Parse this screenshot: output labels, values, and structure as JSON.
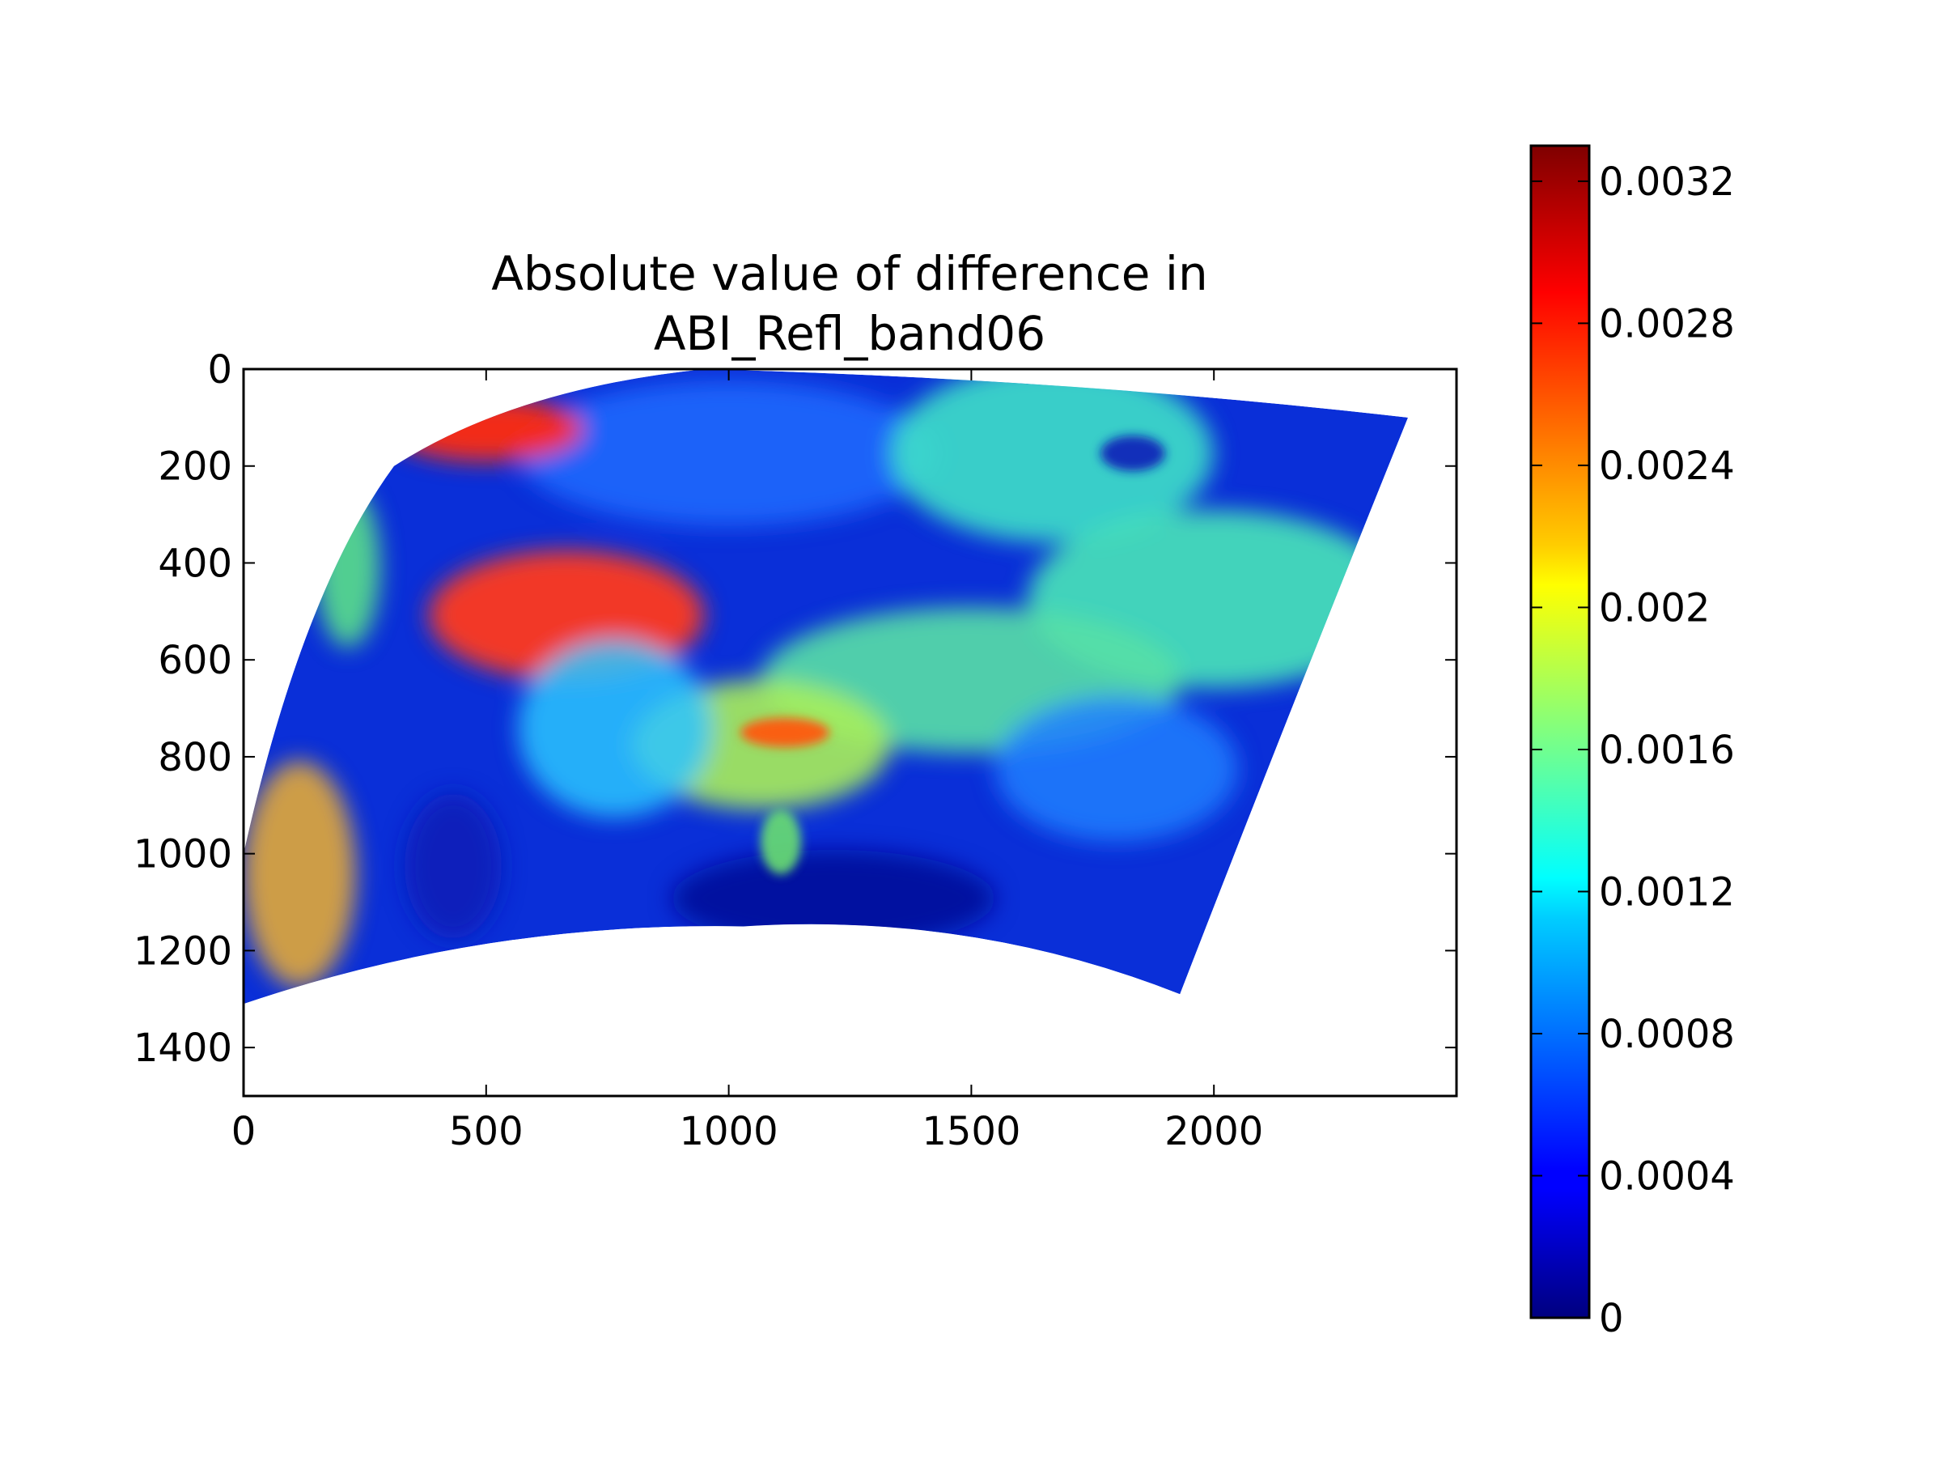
{
  "chart_data": {
    "type": "heatmap",
    "title_lines": [
      "Absolute value of difference in",
      "ABI_Refl_band06"
    ],
    "xlabel": "",
    "ylabel": "",
    "x_ticks": [
      "0",
      "500",
      "1000",
      "1500",
      "2000"
    ],
    "y_ticks": [
      "0",
      "200",
      "400",
      "600",
      "800",
      "1000",
      "1200",
      "1400"
    ],
    "xlim": [
      0,
      2500
    ],
    "ylim": [
      1500,
      0
    ],
    "y_inverted": true,
    "grid": false,
    "colormap": "jet",
    "colorbar": {
      "range": [
        0,
        0.0033
      ],
      "ticks": [
        "0",
        "0.0004",
        "0.0008",
        "0.0012",
        "0.0016",
        "0.002",
        "0.0024",
        "0.0028",
        "0.0032"
      ]
    },
    "data_region_outline": [
      [
        310,
        200
      ],
      [
        950,
        0
      ],
      [
        2400,
        100
      ],
      [
        1930,
        1290
      ],
      [
        1030,
        1150
      ],
      [
        0,
        1310
      ],
      [
        0,
        1000
      ]
    ],
    "features": [
      {
        "region": "northwest band",
        "level": 0.0029
      },
      {
        "region": "central-west cloud streak",
        "level": 0.0029
      },
      {
        "region": "central swirl",
        "level": 0.0014
      },
      {
        "region": "east cloud mass",
        "level": 0.0014
      },
      {
        "region": "southwest speckle",
        "level": 0.0024
      },
      {
        "region": "background ocean",
        "level": 0.0002
      }
    ],
    "colors": {
      "low": "#00007f",
      "blue": "#0000ff",
      "cyan": "#00ffff",
      "yellow": "#ffff00",
      "red": "#ff0000",
      "high": "#7f0000"
    }
  }
}
